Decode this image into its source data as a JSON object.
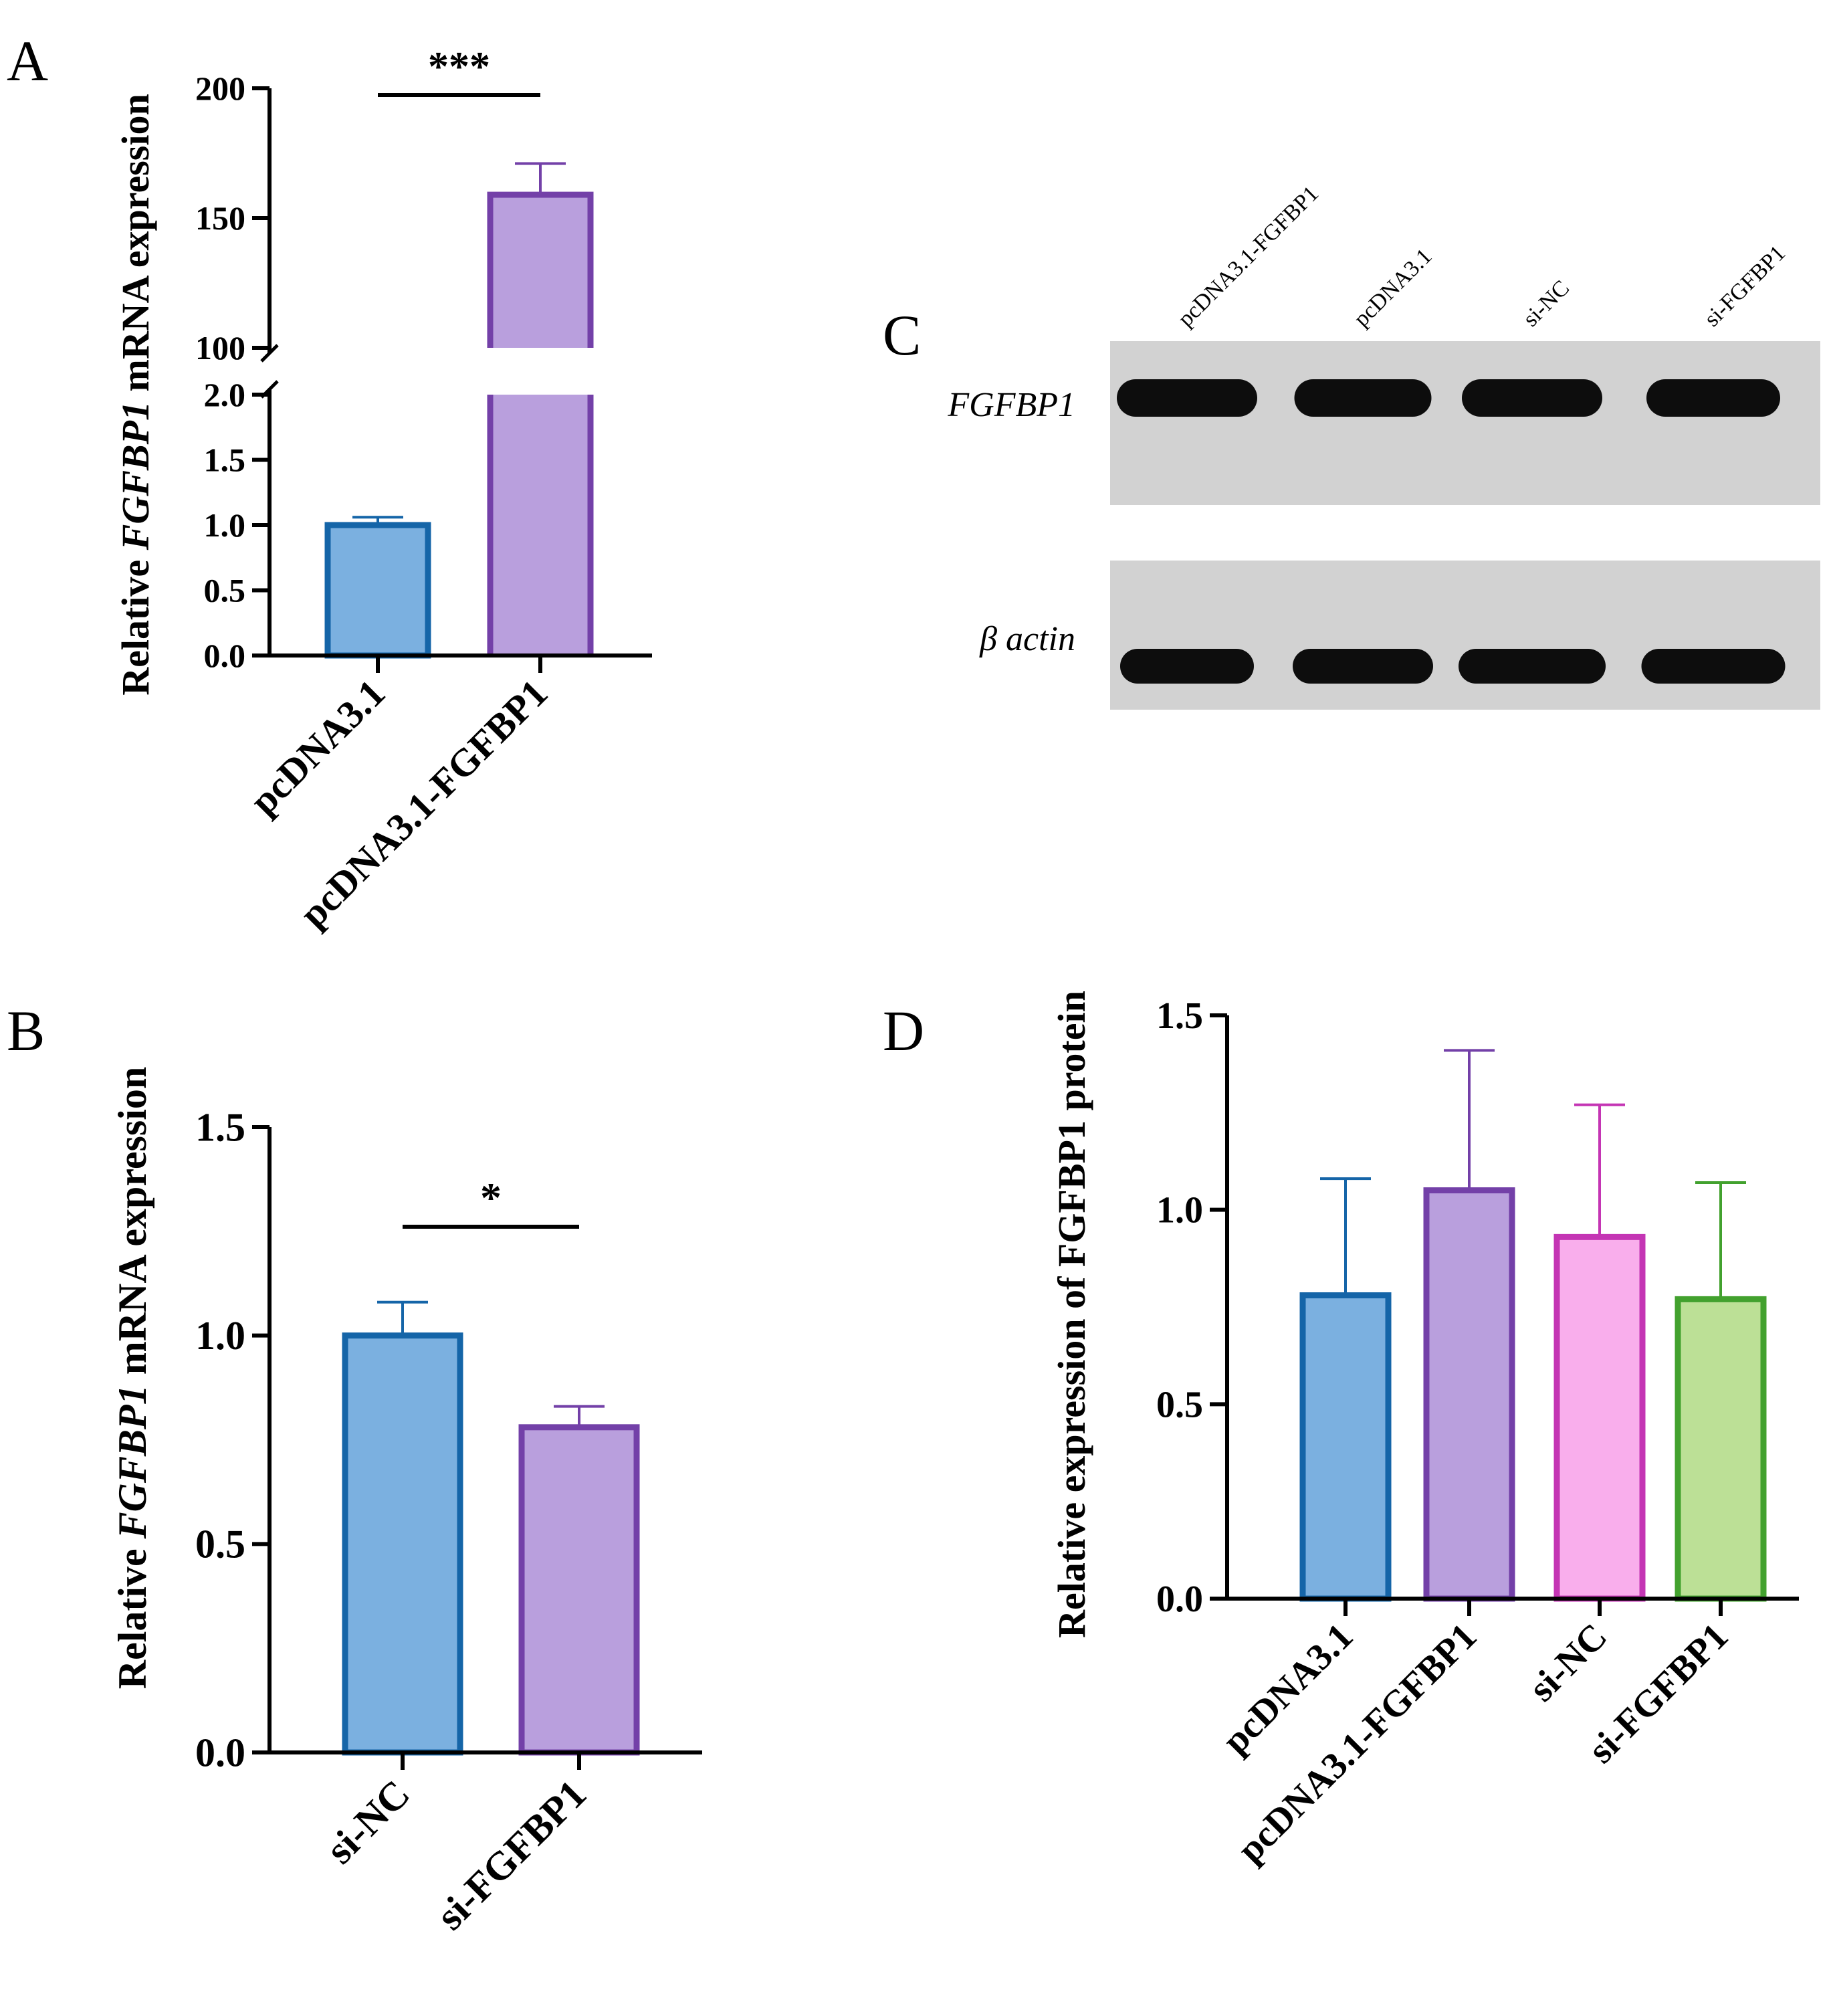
{
  "colors": {
    "blue_fill": "#7bb0e0",
    "blue_edge": "#1565a8",
    "purple_fill": "#b99fdd",
    "purple_edge": "#7340a8",
    "pink_fill": "#f9aeec",
    "pink_edge": "#c435b4",
    "green_fill": "#bce096",
    "green_edge": "#42a12e",
    "axis": "#000000",
    "blot_bg": "#d2d2d2",
    "band": "#0d0d0d"
  },
  "chart_data": [
    {
      "panel": "A",
      "type": "bar",
      "categories": [
        "pcDNA3.1",
        "pcDNA3.1-FGFBP1"
      ],
      "values": [
        1.0,
        159
      ],
      "errors": [
        0.06,
        12
      ],
      "colors": [
        "blue",
        "purple"
      ],
      "ylabel_pre": "Relative ",
      "ylabel_gene": "FGFBP1",
      "ylabel_post": " mRNA expression",
      "axis_break": true,
      "lower_ylim": [
        0,
        2.0
      ],
      "lower_ticks": [
        "0.0",
        "0.5",
        "1.0",
        "1.5",
        "2.0"
      ],
      "upper_ylim": [
        100,
        200
      ],
      "upper_ticks": [
        "100",
        "150",
        "200"
      ],
      "significance": "***",
      "grid": false
    },
    {
      "panel": "B",
      "type": "bar",
      "categories": [
        "si-NC",
        "si-FGFBP1"
      ],
      "values": [
        1.0,
        0.78
      ],
      "errors": [
        0.08,
        0.05
      ],
      "colors": [
        "blue",
        "purple"
      ],
      "ylabel_pre": "Relative ",
      "ylabel_gene": "FGFBP1",
      "ylabel_post": " mRNA expression",
      "ylim": [
        0,
        1.5
      ],
      "ticks": [
        "0.0",
        "0.5",
        "1.0",
        "1.5"
      ],
      "significance": "*",
      "grid": false
    },
    {
      "panel": "C",
      "type": "western-blot",
      "lanes": [
        "pcDNA3.1-FGFBP1",
        "pcDNA3.1",
        "si-NC",
        "si-FGFBP1"
      ],
      "rows": [
        "FGFBP1",
        "β actin"
      ]
    },
    {
      "panel": "D",
      "type": "bar",
      "categories": [
        "pcDNA3.1",
        "pcDNA3.1-FGFBP1",
        "si-NC",
        "si-FGFBP1"
      ],
      "values": [
        0.78,
        1.05,
        0.93,
        0.77
      ],
      "errors": [
        0.3,
        0.36,
        0.34,
        0.3
      ],
      "colors": [
        "blue",
        "purple",
        "pink",
        "green"
      ],
      "ylabel": "Relative expression  of FGFBP1 protein",
      "ylim": [
        0,
        1.5
      ],
      "ticks": [
        "0.0",
        "0.5",
        "1.0",
        "1.5"
      ],
      "grid": false
    }
  ]
}
